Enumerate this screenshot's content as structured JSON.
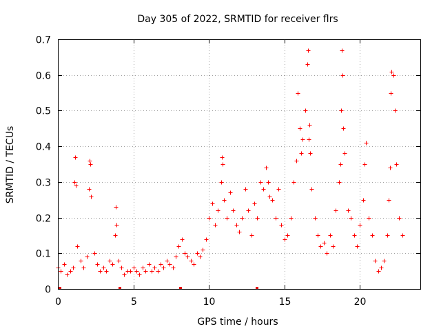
{
  "chart_data": {
    "type": "scatter",
    "title": "Day 305 of 2022, SRMTID for receiver flrs",
    "xlabel": "GPS time / hours",
    "ylabel": "SRMTID / TECUs",
    "xlim": [
      0,
      24
    ],
    "ylim": [
      0,
      0.7
    ],
    "xticks": [
      0,
      5,
      10,
      15,
      20
    ],
    "xtick_labels": [
      "0",
      "5",
      "10",
      "15",
      "20"
    ],
    "yticks": [
      0,
      0.1,
      0.2,
      0.3,
      0.4,
      0.5,
      0.6,
      0.7
    ],
    "ytick_labels": [
      "0",
      "0.1",
      "0.2",
      "0.3",
      "0.4",
      "0.5",
      "0.6",
      "0.7"
    ],
    "grid": true,
    "marker": "plus",
    "color": "#ff0000",
    "data_gaps_at_hours": [
      0.15,
      4.1,
      8.1,
      13.2
    ],
    "series": [
      {
        "name": "SRMTID",
        "x": [
          0.0,
          0.2,
          0.4,
          0.6,
          0.8,
          1.0,
          1.1,
          1.15,
          1.2,
          1.3,
          1.5,
          1.7,
          1.9,
          2.05,
          2.1,
          2.15,
          2.2,
          2.4,
          2.6,
          2.8,
          3.0,
          3.2,
          3.4,
          3.6,
          3.8,
          3.85,
          3.9,
          4.0,
          4.2,
          4.4,
          4.6,
          4.8,
          5.0,
          5.2,
          5.4,
          5.6,
          5.8,
          6.0,
          6.2,
          6.4,
          6.6,
          6.8,
          7.0,
          7.2,
          7.4,
          7.6,
          7.8,
          8.0,
          8.2,
          8.4,
          8.6,
          8.8,
          9.0,
          9.2,
          9.4,
          9.6,
          9.8,
          10.0,
          10.2,
          10.4,
          10.6,
          10.8,
          10.85,
          10.9,
          11.0,
          11.2,
          11.4,
          11.6,
          11.8,
          12.0,
          12.2,
          12.4,
          12.6,
          12.8,
          13.0,
          13.2,
          13.4,
          13.6,
          13.8,
          13.9,
          14.0,
          14.2,
          14.4,
          14.6,
          14.8,
          15.0,
          15.2,
          15.4,
          15.6,
          15.8,
          15.9,
          16.0,
          16.1,
          16.2,
          16.4,
          16.5,
          16.55,
          16.6,
          16.65,
          16.7,
          16.8,
          17.0,
          17.2,
          17.4,
          17.6,
          17.8,
          18.0,
          18.2,
          18.4,
          18.6,
          18.7,
          18.75,
          18.8,
          18.85,
          18.9,
          19.0,
          19.2,
          19.4,
          19.6,
          19.8,
          20.0,
          20.2,
          20.3,
          20.4,
          20.6,
          20.8,
          21.0,
          21.2,
          21.4,
          21.6,
          21.8,
          21.9,
          22.0,
          22.05,
          22.1,
          22.2,
          22.3,
          22.4,
          22.6,
          22.8
        ],
        "y": [
          0.06,
          0.05,
          0.07,
          0.04,
          0.05,
          0.06,
          0.3,
          0.37,
          0.29,
          0.12,
          0.08,
          0.06,
          0.09,
          0.28,
          0.36,
          0.35,
          0.26,
          0.1,
          0.07,
          0.05,
          0.06,
          0.05,
          0.08,
          0.07,
          0.15,
          0.23,
          0.18,
          0.08,
          0.06,
          0.04,
          0.05,
          0.05,
          0.06,
          0.05,
          0.04,
          0.06,
          0.05,
          0.07,
          0.05,
          0.06,
          0.05,
          0.07,
          0.06,
          0.08,
          0.07,
          0.06,
          0.09,
          0.12,
          0.14,
          0.1,
          0.09,
          0.08,
          0.07,
          0.1,
          0.09,
          0.11,
          0.14,
          0.2,
          0.24,
          0.18,
          0.22,
          0.3,
          0.37,
          0.35,
          0.25,
          0.2,
          0.27,
          0.22,
          0.18,
          0.16,
          0.2,
          0.28,
          0.22,
          0.15,
          0.24,
          0.2,
          0.3,
          0.28,
          0.34,
          0.3,
          0.26,
          0.25,
          0.2,
          0.28,
          0.18,
          0.14,
          0.15,
          0.2,
          0.3,
          0.36,
          0.55,
          0.45,
          0.38,
          0.42,
          0.5,
          0.63,
          0.67,
          0.42,
          0.46,
          0.38,
          0.28,
          0.2,
          0.15,
          0.12,
          0.13,
          0.1,
          0.15,
          0.12,
          0.22,
          0.3,
          0.35,
          0.5,
          0.67,
          0.6,
          0.45,
          0.38,
          0.22,
          0.2,
          0.15,
          0.12,
          0.18,
          0.25,
          0.35,
          0.41,
          0.2,
          0.15,
          0.08,
          0.05,
          0.06,
          0.08,
          0.15,
          0.25,
          0.34,
          0.55,
          0.61,
          0.6,
          0.5,
          0.35,
          0.2,
          0.15
        ]
      }
    ]
  }
}
